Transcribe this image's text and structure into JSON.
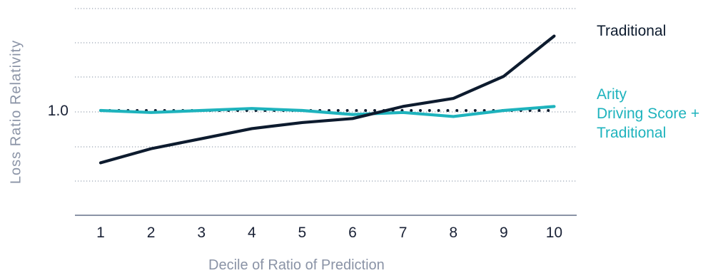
{
  "chart_data": {
    "type": "line",
    "ylabel": "Loss Ratio Relativity",
    "xlabel": "Decile of Ratio of Prediction",
    "x": [
      1,
      2,
      3,
      4,
      5,
      6,
      7,
      8,
      9,
      10
    ],
    "ytick_labels": [
      "1.0"
    ],
    "ylim": [
      0.55,
      1.45
    ],
    "grid": "dotted horizontal",
    "legend_placement": "right",
    "series": [
      {
        "name": "Traditional",
        "color": "#0d1b2e",
        "values": [
          0.74,
          0.81,
          0.86,
          0.91,
          0.94,
          0.96,
          1.02,
          1.06,
          1.17,
          1.37
        ]
      },
      {
        "name": "Arity Driving Score + Traditional",
        "color": "#1eb3bd",
        "values": [
          1.0,
          0.99,
          1.0,
          1.01,
          1.0,
          0.98,
          0.99,
          0.97,
          1.0,
          1.02
        ]
      }
    ],
    "reference_line": {
      "value": 1.0,
      "style": "dotted",
      "color": "#0d1b2e"
    }
  },
  "legend": {
    "traditional": "Traditional",
    "arity_lines": [
      "Arity",
      "Driving Score +",
      "Traditional"
    ]
  }
}
